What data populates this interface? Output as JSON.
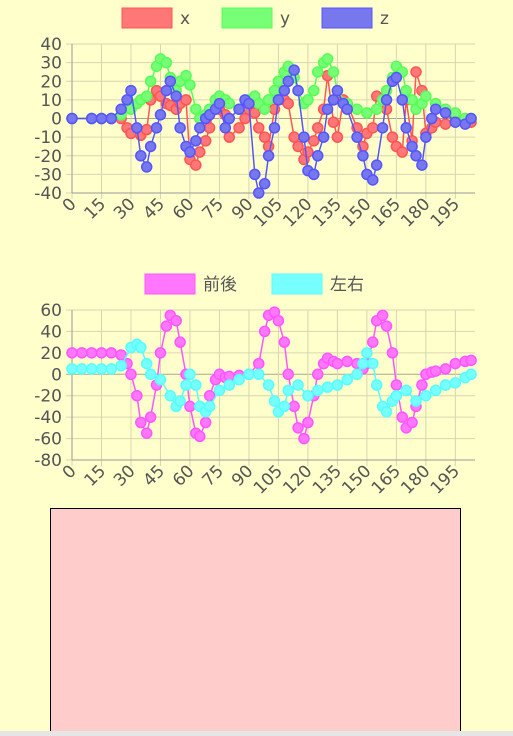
{
  "chart_data": [
    {
      "type": "line",
      "legend_position": "top",
      "grid": true,
      "ylim": [
        -40,
        40
      ],
      "yticks": [
        40,
        30,
        20,
        10,
        0,
        -10,
        -20,
        -30,
        -40
      ],
      "xticks": [
        "0",
        "15",
        "30",
        "45",
        "60",
        "75",
        "90",
        "105",
        "120",
        "135",
        "150",
        "165",
        "180",
        "195"
      ],
      "x_range": [
        0,
        205
      ],
      "series": [
        {
          "name": "x",
          "color": "#ff5555",
          "fill": "#ff7777",
          "x": [
            0,
            10,
            15,
            20,
            25,
            28,
            30,
            35,
            38,
            40,
            43,
            45,
            48,
            50,
            53,
            55,
            58,
            60,
            63,
            65,
            68,
            70,
            73,
            75,
            78,
            80,
            85,
            88,
            90,
            93,
            95,
            98,
            100,
            103,
            105,
            108,
            110,
            113,
            115,
            118,
            120,
            123,
            125,
            128,
            130,
            133,
            135,
            138,
            140,
            145,
            148,
            150,
            153,
            155,
            158,
            160,
            163,
            165,
            168,
            170,
            173,
            175,
            178,
            180,
            183,
            185,
            190,
            195,
            200,
            203
          ],
          "values": [
            0,
            0,
            0,
            0,
            0,
            -5,
            -8,
            -9,
            -6,
            10,
            15,
            12,
            8,
            7,
            5,
            8,
            10,
            -22,
            -25,
            -18,
            -12,
            -5,
            10,
            5,
            2,
            -10,
            -5,
            0,
            5,
            3,
            -5,
            -10,
            -15,
            5,
            15,
            10,
            8,
            -10,
            -15,
            -22,
            -18,
            -12,
            -5,
            5,
            23,
            -2,
            -10,
            10,
            8,
            -5,
            -15,
            -8,
            -5,
            12,
            10,
            5,
            -10,
            -15,
            -18,
            10,
            -12,
            25,
            15,
            -8,
            -5,
            -2,
            -3,
            0,
            -2,
            -2
          ]
        },
        {
          "name": "y",
          "color": "#55ff55",
          "fill": "#77ff77",
          "x": [
            0,
            10,
            15,
            20,
            25,
            30,
            33,
            35,
            38,
            40,
            43,
            45,
            48,
            50,
            53,
            55,
            58,
            60,
            63,
            65,
            68,
            70,
            73,
            75,
            78,
            80,
            85,
            90,
            93,
            95,
            98,
            100,
            103,
            105,
            108,
            110,
            113,
            115,
            118,
            120,
            123,
            125,
            128,
            130,
            133,
            135,
            140,
            145,
            150,
            155,
            158,
            160,
            163,
            165,
            168,
            170,
            173,
            175,
            178,
            180,
            185,
            190,
            195,
            200,
            203
          ],
          "values": [
            0,
            0,
            0,
            0,
            2,
            5,
            8,
            10,
            12,
            20,
            28,
            32,
            30,
            22,
            15,
            20,
            23,
            18,
            5,
            0,
            2,
            5,
            10,
            12,
            10,
            8,
            5,
            10,
            12,
            8,
            5,
            10,
            15,
            20,
            25,
            28,
            22,
            15,
            8,
            10,
            15,
            25,
            30,
            32,
            25,
            15,
            8,
            5,
            3,
            5,
            10,
            15,
            22,
            28,
            25,
            15,
            10,
            5,
            8,
            12,
            8,
            5,
            3,
            0,
            0
          ]
        },
        {
          "name": "z",
          "color": "#5555ff",
          "fill": "#7777ee",
          "x": [
            0,
            10,
            15,
            20,
            25,
            28,
            30,
            33,
            35,
            38,
            40,
            43,
            45,
            48,
            50,
            53,
            55,
            58,
            60,
            63,
            65,
            68,
            70,
            73,
            75,
            78,
            80,
            85,
            88,
            90,
            93,
            95,
            98,
            100,
            103,
            105,
            108,
            110,
            113,
            115,
            118,
            120,
            123,
            125,
            128,
            130,
            133,
            135,
            138,
            140,
            145,
            148,
            150,
            153,
            155,
            158,
            160,
            163,
            165,
            168,
            170,
            173,
            175,
            178,
            180,
            183,
            185,
            190,
            195,
            200,
            203
          ],
          "values": [
            0,
            0,
            0,
            0,
            5,
            10,
            15,
            -5,
            -20,
            -26,
            -15,
            -5,
            2,
            15,
            20,
            12,
            -5,
            -15,
            -18,
            -12,
            -5,
            0,
            2,
            5,
            8,
            -5,
            0,
            5,
            10,
            8,
            -30,
            -40,
            -35,
            -20,
            -5,
            10,
            15,
            20,
            26,
            15,
            -10,
            -28,
            -30,
            -20,
            -10,
            5,
            10,
            15,
            8,
            5,
            -10,
            -20,
            -30,
            -33,
            -25,
            -5,
            10,
            20,
            22,
            10,
            -5,
            -15,
            -20,
            -25,
            -10,
            0,
            5,
            3,
            -2,
            -3,
            0
          ]
        }
      ]
    },
    {
      "type": "line",
      "legend_position": "top",
      "grid": true,
      "ylim": [
        -80,
        60
      ],
      "yticks": [
        60,
        40,
        20,
        0,
        -20,
        -40,
        -60,
        -80
      ],
      "xticks": [
        "0",
        "15",
        "30",
        "45",
        "60",
        "75",
        "90",
        "105",
        "120",
        "135",
        "150",
        "165",
        "180",
        "195"
      ],
      "x_range": [
        0,
        205
      ],
      "series": [
        {
          "name": "前後",
          "color": "#ff55ff",
          "fill": "#ff77ff",
          "x": [
            0,
            5,
            10,
            15,
            20,
            25,
            28,
            30,
            33,
            35,
            38,
            40,
            43,
            45,
            48,
            50,
            53,
            55,
            58,
            60,
            63,
            65,
            68,
            70,
            73,
            75,
            78,
            80,
            85,
            90,
            95,
            98,
            100,
            103,
            105,
            108,
            110,
            113,
            115,
            118,
            120,
            123,
            125,
            128,
            130,
            133,
            135,
            140,
            145,
            148,
            150,
            153,
            155,
            158,
            160,
            163,
            165,
            168,
            170,
            173,
            175,
            178,
            180,
            183,
            185,
            190,
            195,
            200,
            203
          ],
          "values": [
            20,
            20,
            20,
            20,
            20,
            18,
            10,
            0,
            -20,
            -45,
            -55,
            -40,
            -10,
            20,
            45,
            55,
            50,
            30,
            0,
            -30,
            -55,
            -58,
            -45,
            -20,
            -5,
            0,
            -3,
            -2,
            -1,
            0,
            10,
            40,
            55,
            58,
            50,
            30,
            0,
            -30,
            -50,
            -60,
            -45,
            -20,
            0,
            10,
            15,
            12,
            10,
            12,
            10,
            5,
            10,
            30,
            50,
            55,
            45,
            20,
            -10,
            -40,
            -50,
            -45,
            -30,
            -10,
            0,
            2,
            3,
            5,
            10,
            12,
            13
          ]
        },
        {
          "name": "左右",
          "color": "#55ffff",
          "fill": "#77ffff",
          "x": [
            0,
            5,
            10,
            15,
            20,
            25,
            30,
            33,
            35,
            38,
            40,
            45,
            50,
            53,
            55,
            58,
            60,
            63,
            65,
            68,
            70,
            75,
            80,
            85,
            90,
            95,
            100,
            103,
            105,
            108,
            110,
            115,
            120,
            125,
            130,
            135,
            140,
            145,
            148,
            150,
            153,
            155,
            158,
            160,
            163,
            165,
            170,
            175,
            180,
            185,
            190,
            195,
            200,
            203
          ],
          "values": [
            5,
            5,
            5,
            5,
            5,
            8,
            25,
            28,
            25,
            10,
            0,
            -5,
            -20,
            -30,
            -25,
            -10,
            0,
            -10,
            -30,
            -35,
            -30,
            -15,
            -10,
            -5,
            0,
            0,
            -10,
            -25,
            -35,
            -30,
            -15,
            -10,
            -20,
            -15,
            -12,
            -10,
            -5,
            0,
            10,
            20,
            10,
            -10,
            -30,
            -35,
            -25,
            -20,
            -15,
            -25,
            -20,
            -15,
            -10,
            -8,
            -3,
            0
          ]
        }
      ]
    }
  ],
  "panel": {
    "color": "#ffcccc"
  }
}
